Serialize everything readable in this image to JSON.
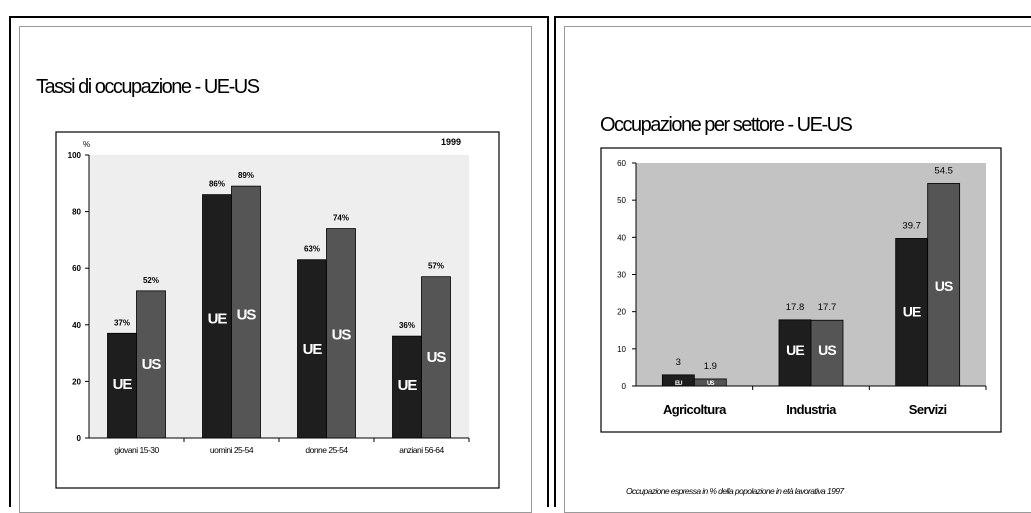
{
  "slides": [
    {
      "title": "Tassi di occupazione - UE-US",
      "chart_data": {
        "type": "bar",
        "ylabel": "%",
        "annotation": "1999",
        "ylim": [
          0,
          100
        ],
        "yticks": [
          "0",
          "20",
          "40",
          "60",
          "80",
          "100"
        ],
        "categories": [
          "giovani 15-30",
          "uomini 25-54",
          "donne 25-54",
          "anziani 56-64"
        ],
        "series": [
          {
            "name": "UE",
            "values": [
              37,
              86,
              63,
              36
            ],
            "labels": [
              "37%",
              "86%",
              "63%",
              "36%"
            ],
            "color": "#1e1e1e"
          },
          {
            "name": "US",
            "values": [
              52,
              89,
              74,
              57
            ],
            "labels": [
              "52%",
              "89%",
              "74%",
              "57%"
            ],
            "color": "#555555"
          }
        ],
        "grid": false,
        "background": "#eeeeee"
      }
    },
    {
      "title": "Occupazione per settore - UE-US",
      "footnote": "Occupazione espressa in % della popolazione in età lavorativa 1997",
      "chart_data": {
        "type": "bar",
        "ylim": [
          0,
          60
        ],
        "yticks": [
          "0",
          "10",
          "20",
          "30",
          "40",
          "50",
          "60"
        ],
        "categories": [
          "Agricoltura",
          "Industria",
          "Servizi"
        ],
        "series": [
          {
            "name": "UE",
            "values": [
              3,
              17.8,
              39.7
            ],
            "labels": [
              "3",
              "17.8",
              "39.7"
            ],
            "in_bar_labels": [
              "EU",
              "UE",
              "UE"
            ],
            "color": "#1e1e1e"
          },
          {
            "name": "US",
            "values": [
              1.9,
              17.7,
              54.5
            ],
            "labels": [
              "1.9",
              "17.7",
              "54.5"
            ],
            "in_bar_labels": [
              "US",
              "US",
              "US"
            ],
            "color": "#555555"
          }
        ],
        "grid": false,
        "background": "#c3c3c3"
      }
    }
  ]
}
